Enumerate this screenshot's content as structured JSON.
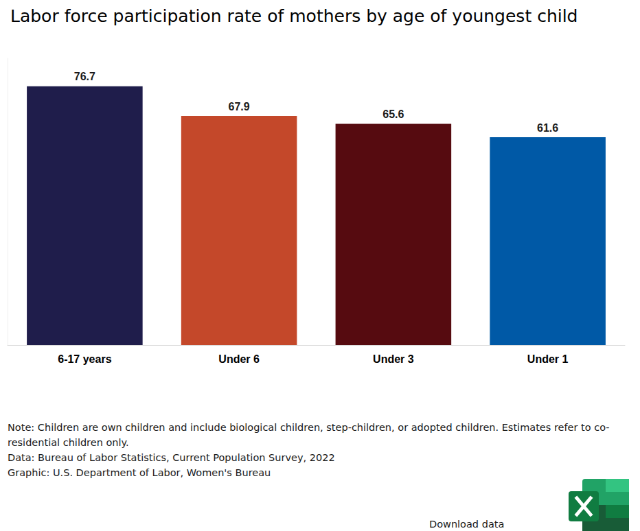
{
  "chart_data": {
    "type": "bar",
    "title": "Labor force participation rate of mothers by age of youngest child",
    "categories": [
      "6-17 years",
      "Under 6",
      "Under 3",
      "Under 1"
    ],
    "values": [
      76.7,
      67.9,
      65.6,
      61.6
    ],
    "colors": [
      "#1f1d4b",
      "#c4482a",
      "#560b10",
      "#0059a6"
    ],
    "ylim": [
      0,
      85
    ],
    "grid": false,
    "data_labels": true,
    "tick_labels": "x",
    "notes": [
      "Note: Children are own children and include biological children, step-children, or adopted children. Estimates refer to co-residential children only.",
      "Data: Bureau of Labor Statistics, Current Population Survey, 2022",
      "Graphic: U.S. Department of Labor, Women's Bureau"
    ],
    "download_label": "Download data"
  }
}
